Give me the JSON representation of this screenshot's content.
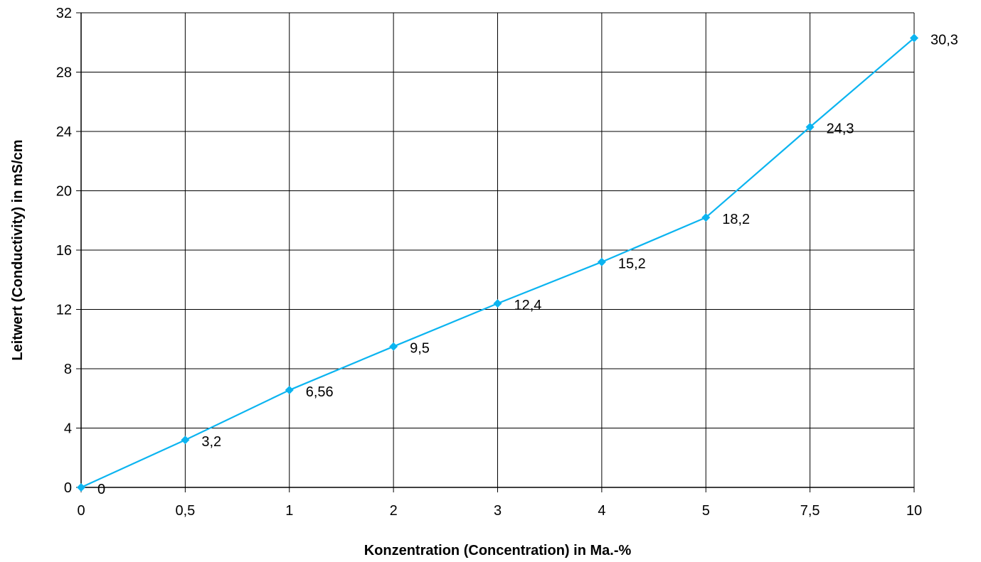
{
  "chart_data": {
    "type": "line",
    "title": "",
    "xlabel": "Konzentration (Concentration) in Ma.-%",
    "ylabel": "Leitwert (Conductivity) in mS/cm",
    "categories": [
      "0",
      "0,5",
      "1",
      "2",
      "3",
      "4",
      "5",
      "7,5",
      "10"
    ],
    "y_ticks": [
      "0",
      "4",
      "8",
      "12",
      "16",
      "20",
      "24",
      "28",
      "32"
    ],
    "ylim": [
      0,
      32
    ],
    "grid": true,
    "legend": "none",
    "series": [
      {
        "values": [
          0,
          3.2,
          6.56,
          9.5,
          12.4,
          15.2,
          18.2,
          24.3,
          30.3
        ],
        "labels": [
          "0",
          "3,2",
          "6,56",
          "9,5",
          "12,4",
          "15,2",
          "18,2",
          "24,3",
          "30,3"
        ],
        "color": "#0BB4F0",
        "marker": "diamond"
      }
    ]
  }
}
